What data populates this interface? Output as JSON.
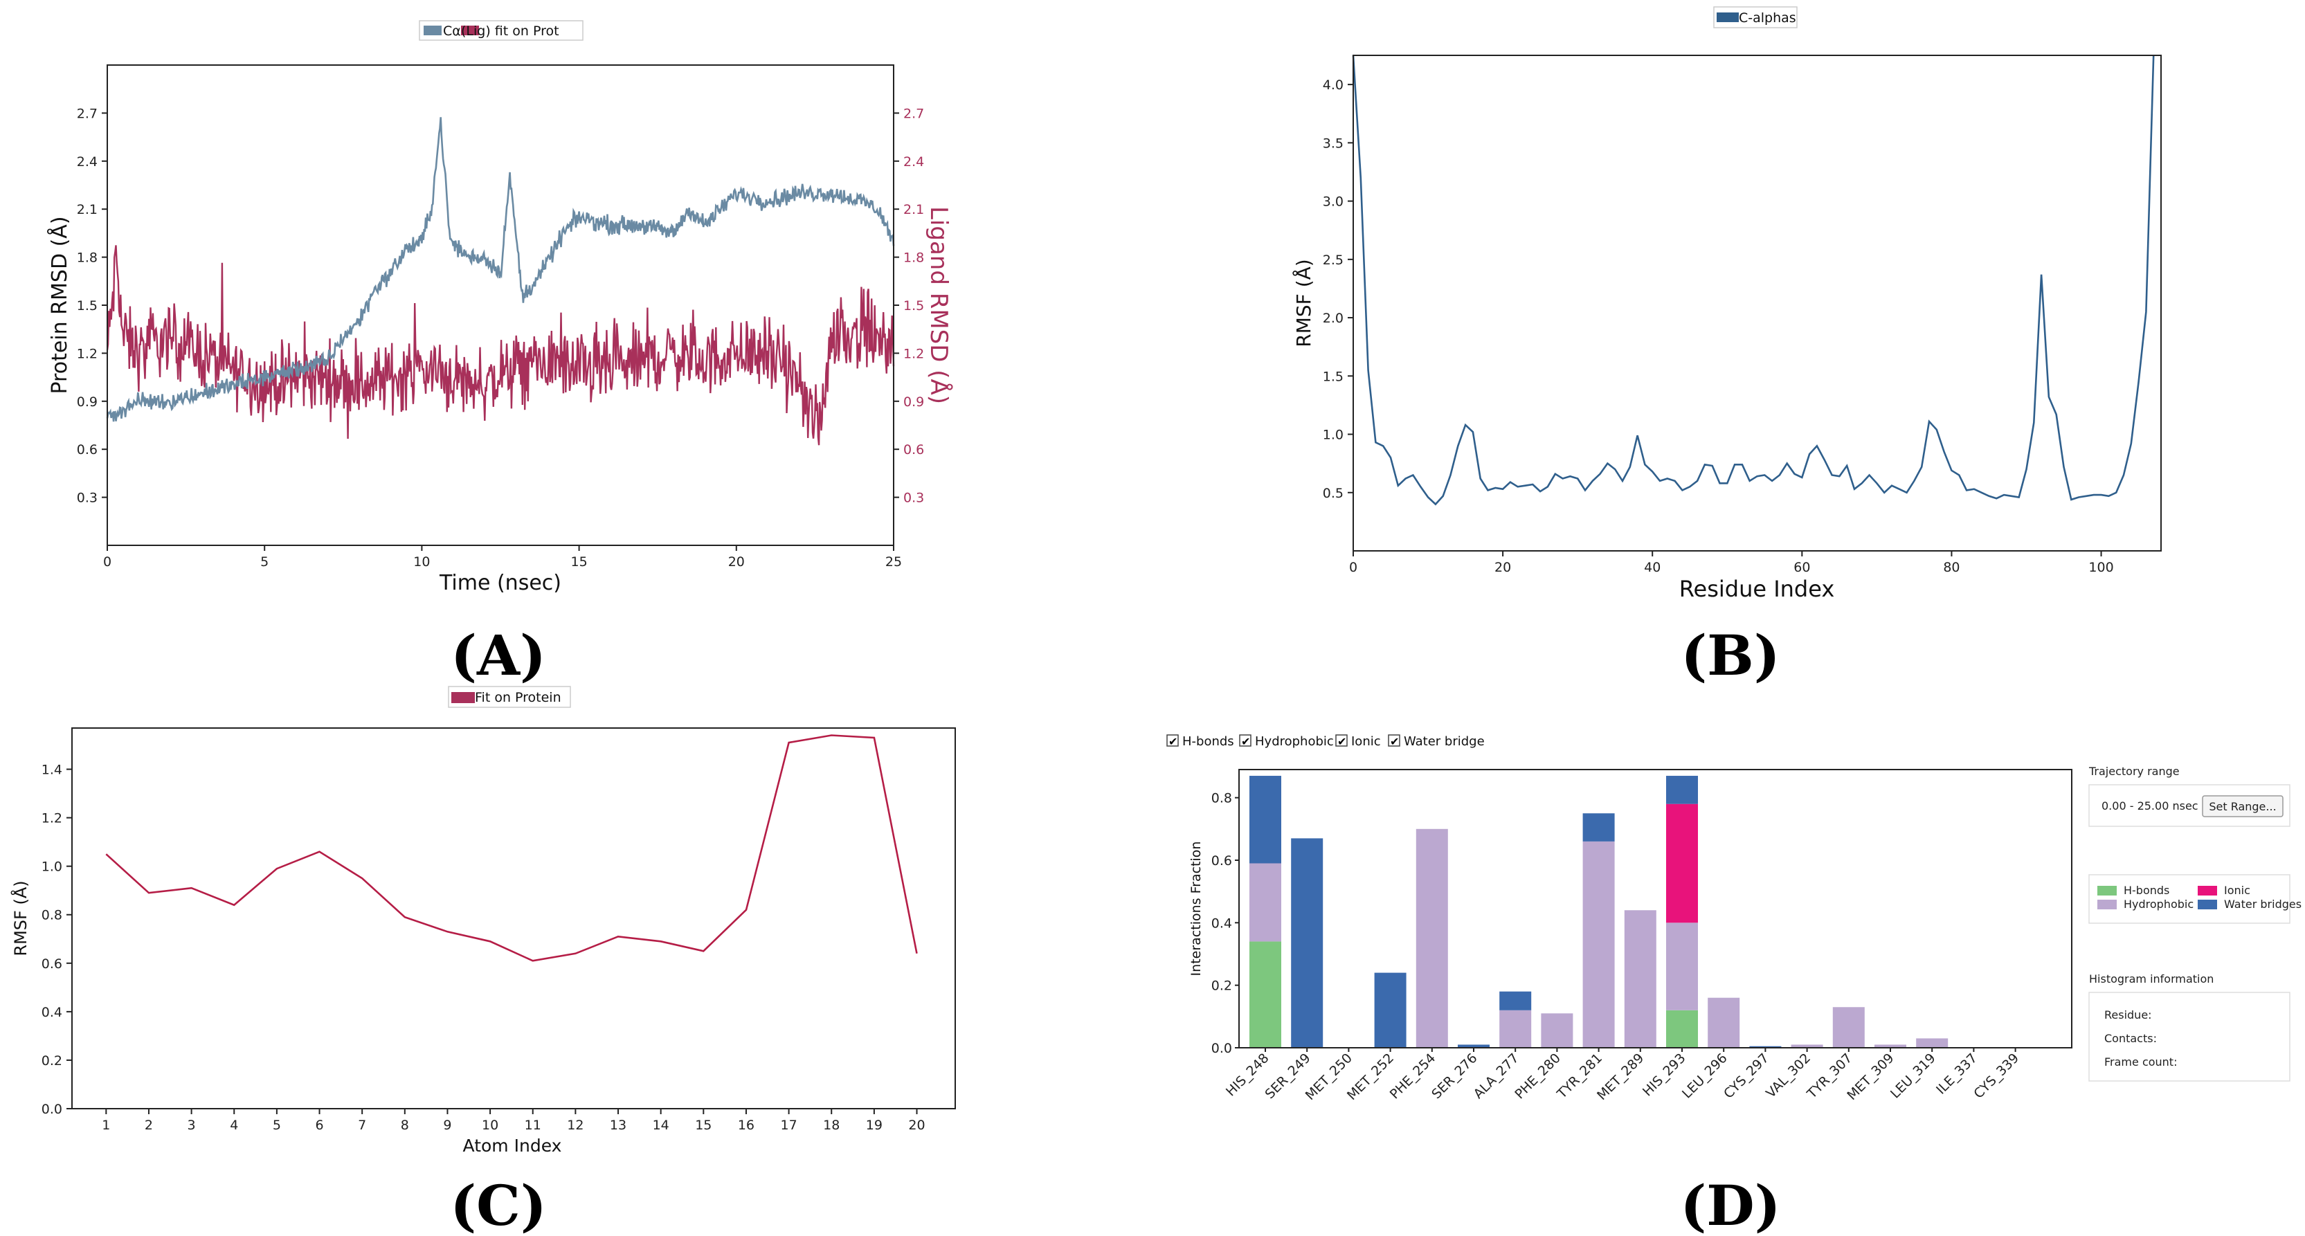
{
  "panels": {
    "a": "(A)",
    "b": "(B)",
    "c": "(C)",
    "d": "(D)"
  },
  "colors": {
    "protein": "#6a8aa3",
    "ligand": "#a8305a",
    "calpha": "#2f5f8c",
    "ligrmsf": "#b51d46",
    "hbond": "#7dc77e",
    "hydrophobic": "#bba8d0",
    "ionic": "#e8137b",
    "water": "#3b6aad"
  },
  "chart_data": [
    {
      "type": "line",
      "panel": "A",
      "legend": [
        "Cα",
        "(Lig) fit on Prot"
      ],
      "xlabel": "Time (nsec)",
      "ylabel": "Protein RMSD (Å)",
      "y2label": "Ligand RMSD (Å)",
      "xlim": [
        0,
        25
      ],
      "ylim": [
        0,
        3.0
      ],
      "y2lim": [
        0,
        3.0
      ],
      "xticks": [
        "0",
        "5",
        "10",
        "15",
        "20",
        "25"
      ],
      "yticks": [
        "0.3",
        "0.6",
        "0.9",
        "1.2",
        "1.5",
        "1.8",
        "2.1",
        "2.4",
        "2.7"
      ],
      "y2ticks": [
        "0.3",
        "0.6",
        "0.9",
        "1.2",
        "1.5",
        "1.8",
        "2.1",
        "2.4",
        "2.7"
      ],
      "series": [
        {
          "name": "Cα",
          "color": "#6a8aa3",
          "keypoints": [
            [
              0,
              0.8
            ],
            [
              1,
              0.9
            ],
            [
              2,
              0.9
            ],
            [
              3,
              0.95
            ],
            [
              4,
              1.0
            ],
            [
              5,
              1.05
            ],
            [
              6,
              1.1
            ],
            [
              7,
              1.15
            ],
            [
              7.5,
              1.3
            ],
            [
              8,
              1.4
            ],
            [
              8.5,
              1.6
            ],
            [
              9,
              1.7
            ],
            [
              9.5,
              1.85
            ],
            [
              10,
              1.9
            ],
            [
              10.3,
              2.1
            ],
            [
              10.6,
              2.65
            ],
            [
              10.9,
              1.9
            ],
            [
              11.5,
              1.8
            ],
            [
              12,
              1.8
            ],
            [
              12.5,
              1.7
            ],
            [
              12.8,
              2.3
            ],
            [
              13.2,
              1.55
            ],
            [
              13.8,
              1.7
            ],
            [
              14.5,
              1.95
            ],
            [
              15,
              2.05
            ],
            [
              16,
              2.0
            ],
            [
              17,
              2.0
            ],
            [
              18,
              1.95
            ],
            [
              18.5,
              2.1
            ],
            [
              19,
              2.0
            ],
            [
              20,
              2.2
            ],
            [
              21,
              2.15
            ],
            [
              22,
              2.2
            ],
            [
              23,
              2.2
            ],
            [
              24,
              2.15
            ],
            [
              24.5,
              2.1
            ],
            [
              25,
              1.9
            ]
          ]
        },
        {
          "name": "(Lig) fit on Prot",
          "color": "#a8305a",
          "keypoints": [
            [
              0,
              1.2
            ],
            [
              0.3,
              1.8
            ],
            [
              0.5,
              1.3
            ],
            [
              1,
              1.2
            ],
            [
              2,
              1.3
            ],
            [
              3,
              1.2
            ],
            [
              4,
              1.1
            ],
            [
              5,
              1.0
            ],
            [
              6,
              1.05
            ],
            [
              7,
              1.05
            ],
            [
              8,
              1.0
            ],
            [
              9,
              1.05
            ],
            [
              10,
              1.1
            ],
            [
              11,
              1.05
            ],
            [
              12,
              1.0
            ],
            [
              13,
              1.1
            ],
            [
              14,
              1.15
            ],
            [
              15,
              1.1
            ],
            [
              16,
              1.1
            ],
            [
              17,
              1.15
            ],
            [
              18,
              1.2
            ],
            [
              19,
              1.15
            ],
            [
              20,
              1.2
            ],
            [
              21,
              1.2
            ],
            [
              22,
              1.0
            ],
            [
              22.6,
              0.7
            ],
            [
              23,
              1.3
            ],
            [
              24,
              1.35
            ],
            [
              25,
              1.2
            ]
          ]
        }
      ]
    },
    {
      "type": "line",
      "panel": "B",
      "legend": [
        "C-alphas"
      ],
      "xlabel": "Residue Index",
      "ylabel": "RMSF (Å)",
      "xlim": [
        0,
        108
      ],
      "ylim": [
        0,
        4.25
      ],
      "xticks": [
        "0",
        "20",
        "40",
        "60",
        "80",
        "100"
      ],
      "yticks": [
        "0.5",
        "1.0",
        "1.5",
        "2.0",
        "2.5",
        "3.0",
        "3.5",
        "4.0"
      ],
      "series": [
        {
          "name": "C-alphas",
          "color": "#2f5f8c",
          "x": [
            0,
            1,
            2,
            3,
            4,
            5,
            6,
            7,
            8,
            9,
            10,
            11,
            12,
            13,
            14,
            15,
            16,
            17,
            18,
            19,
            20,
            21,
            22,
            23,
            24,
            25,
            26,
            27,
            28,
            29,
            30,
            31,
            32,
            33,
            34,
            35,
            36,
            37,
            38,
            39,
            40,
            41,
            42,
            43,
            44,
            45,
            46,
            47,
            48,
            49,
            50,
            51,
            52,
            53,
            54,
            55,
            56,
            57,
            58,
            59,
            60,
            61,
            62,
            63,
            64,
            65,
            66,
            67,
            68,
            69,
            70,
            71,
            72,
            73,
            74,
            75,
            76,
            77,
            78,
            79,
            80,
            81,
            82,
            83,
            84,
            85,
            86,
            87,
            88,
            89,
            90,
            91,
            92,
            93,
            94,
            95,
            96,
            97,
            98,
            99,
            100,
            101,
            102,
            103,
            104,
            105,
            106,
            107
          ],
          "values": [
            4.25,
            3.2,
            1.55,
            0.93,
            0.9,
            0.8,
            0.56,
            0.62,
            0.65,
            0.55,
            0.46,
            0.4,
            0.47,
            0.65,
            0.9,
            1.08,
            1.02,
            0.62,
            0.52,
            0.54,
            0.53,
            0.59,
            0.55,
            0.56,
            0.57,
            0.51,
            0.55,
            0.66,
            0.62,
            0.64,
            0.62,
            0.52,
            0.6,
            0.66,
            0.75,
            0.7,
            0.6,
            0.72,
            0.99,
            0.74,
            0.68,
            0.6,
            0.62,
            0.6,
            0.52,
            0.55,
            0.6,
            0.74,
            0.73,
            0.58,
            0.58,
            0.74,
            0.74,
            0.6,
            0.64,
            0.65,
            0.6,
            0.65,
            0.75,
            0.66,
            0.63,
            0.83,
            0.9,
            0.78,
            0.65,
            0.64,
            0.73,
            0.53,
            0.58,
            0.65,
            0.58,
            0.5,
            0.56,
            0.53,
            0.5,
            0.6,
            0.72,
            1.11,
            1.04,
            0.85,
            0.69,
            0.65,
            0.52,
            0.53,
            0.5,
            0.47,
            0.45,
            0.48,
            0.47,
            0.46,
            0.7,
            1.1,
            2.37,
            1.32,
            1.17,
            0.72,
            0.44,
            0.46,
            0.47,
            0.48,
            0.48,
            0.47,
            0.5,
            0.65,
            0.92,
            1.45,
            2.05,
            4.25
          ]
        }
      ]
    },
    {
      "type": "line",
      "panel": "C",
      "legend": [
        "Fit on Protein"
      ],
      "xlabel": "Atom Index",
      "ylabel": "RMSF (Å)",
      "xlim": [
        0.2,
        20.9
      ],
      "ylim": [
        0,
        1.57
      ],
      "xticks": [
        "1",
        "2",
        "3",
        "4",
        "5",
        "6",
        "7",
        "8",
        "9",
        "10",
        "11",
        "12",
        "13",
        "14",
        "15",
        "16",
        "17",
        "18",
        "19",
        "20"
      ],
      "yticks": [
        "0.0",
        "0.2",
        "0.4",
        "0.6",
        "0.8",
        "1.0",
        "1.2",
        "1.4"
      ],
      "series": [
        {
          "name": "Fit on Protein",
          "color": "#b51d46",
          "x": [
            1,
            2,
            3,
            4,
            5,
            6,
            7,
            8,
            9,
            10,
            11,
            12,
            13,
            14,
            15,
            16,
            17,
            18,
            19,
            20
          ],
          "values": [
            1.05,
            0.89,
            0.91,
            0.84,
            0.99,
            1.06,
            0.95,
            0.79,
            0.73,
            0.69,
            0.61,
            0.64,
            0.71,
            0.69,
            0.65,
            0.82,
            1.51,
            1.54,
            1.53,
            0.64
          ]
        }
      ]
    },
    {
      "type": "bar",
      "panel": "D",
      "checkboxes": [
        "H-bonds",
        "Hydrophobic",
        "Ionic",
        "Water bridge"
      ],
      "ylabel": "Interactions Fraction",
      "ylim": [
        0,
        0.89
      ],
      "yticks": [
        "0.0",
        "0.2",
        "0.4",
        "0.6",
        "0.8"
      ],
      "categories": [
        "HIS_248",
        "SER_249",
        "MET_250",
        "MET_252",
        "PHE_254",
        "SER_276",
        "ALA_277",
        "PHE_280",
        "TYR_281",
        "MET_289",
        "HIS_293",
        "LEU_296",
        "CYS_297",
        "VAL_302",
        "TYR_307",
        "MET_309",
        "LEU_319",
        "ILE_337",
        "CYS_339"
      ],
      "series": [
        {
          "name": "H-bonds",
          "color": "#7dc77e",
          "values": [
            0.34,
            0,
            0,
            0,
            0,
            0,
            0,
            0,
            0,
            0,
            0.12,
            0,
            0,
            0,
            0,
            0,
            0,
            0,
            0
          ]
        },
        {
          "name": "Hydrophobic",
          "color": "#bba8d0",
          "values": [
            0.25,
            0,
            0,
            0,
            0.7,
            0,
            0.12,
            0.11,
            0.66,
            0.44,
            0.28,
            0.16,
            0,
            0.01,
            0.13,
            0.01,
            0.03,
            0,
            0
          ]
        },
        {
          "name": "Ionic",
          "color": "#e8137b",
          "values": [
            0,
            0,
            0,
            0,
            0,
            0,
            0,
            0,
            0,
            0,
            0.38,
            0,
            0,
            0,
            0,
            0,
            0,
            0,
            0
          ]
        },
        {
          "name": "Water bridges",
          "color": "#3b6aad",
          "values": [
            0.28,
            0.67,
            0,
            0.24,
            0,
            0.01,
            0.06,
            0,
            0.09,
            0,
            0.09,
            0,
            0.005,
            0,
            0,
            0,
            0,
            0,
            0
          ]
        }
      ],
      "legend_labels": [
        "H-bonds",
        "Ionic",
        "Hydrophobic",
        "Water bridges"
      ],
      "trajectory": {
        "title": "Trajectory range",
        "range": "0.00 - 25.00 nsec",
        "button": "Set Range..."
      },
      "histogram": {
        "title": "Histogram information",
        "residue": "Residue:",
        "contacts": "Contacts:",
        "frames": "Frame count:"
      }
    }
  ]
}
